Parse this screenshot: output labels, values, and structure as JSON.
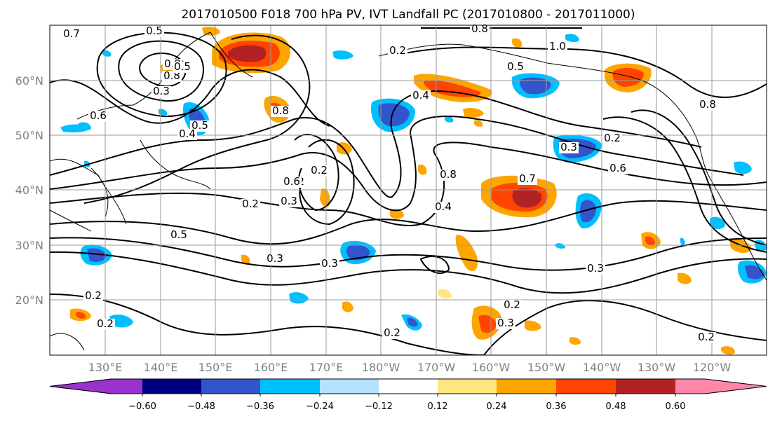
{
  "title": "2017010500 F018 700 hPa PV, IVT Landfall PC (2017010800 - 2017011000)",
  "map": {
    "lat_ticks": [
      "60°N",
      "50°N",
      "40°N",
      "30°N",
      "20°N"
    ],
    "lon_ticks": [
      "130°E",
      "140°E",
      "150°E",
      "160°E",
      "170°E",
      "180°W",
      "170°W",
      "160°W",
      "150°W",
      "140°W",
      "130°W",
      "120°W"
    ],
    "contour_labels": [
      "0.7",
      "0.5",
      "0.5",
      "0.8",
      "0.8",
      "1.0",
      "0.2",
      "0.8",
      "0.5",
      "0.4",
      "0.8",
      "0.3",
      "0.2",
      "0.6",
      "0.4",
      "0.8",
      "0.3",
      "0.2",
      "0.6",
      "0.6",
      "0.2",
      "0.3",
      "0.8",
      "0.7",
      "0.4",
      "0.2",
      "0.5",
      "0.5",
      "0.3",
      "0.3",
      "0.3",
      "0.2",
      "0.2",
      "0.2",
      "0.3",
      "0.2",
      "0.2"
    ],
    "colors": {
      "land_line": "#000000",
      "grid": "#9a9a9a",
      "contour": "#000000"
    }
  },
  "colorbar": {
    "ticks": [
      "−0.60",
      "−0.48",
      "−0.36",
      "−0.24",
      "−0.12",
      "0.12",
      "0.24",
      "0.36",
      "0.48",
      "0.60"
    ],
    "colors": [
      "#9933cc",
      "#00007f",
      "#3355cc",
      "#00bfff",
      "#b3e3ff",
      "#ffffff",
      "#ffe680",
      "#ffa500",
      "#ff4500",
      "#b22222",
      "#ff88aa"
    ]
  }
}
